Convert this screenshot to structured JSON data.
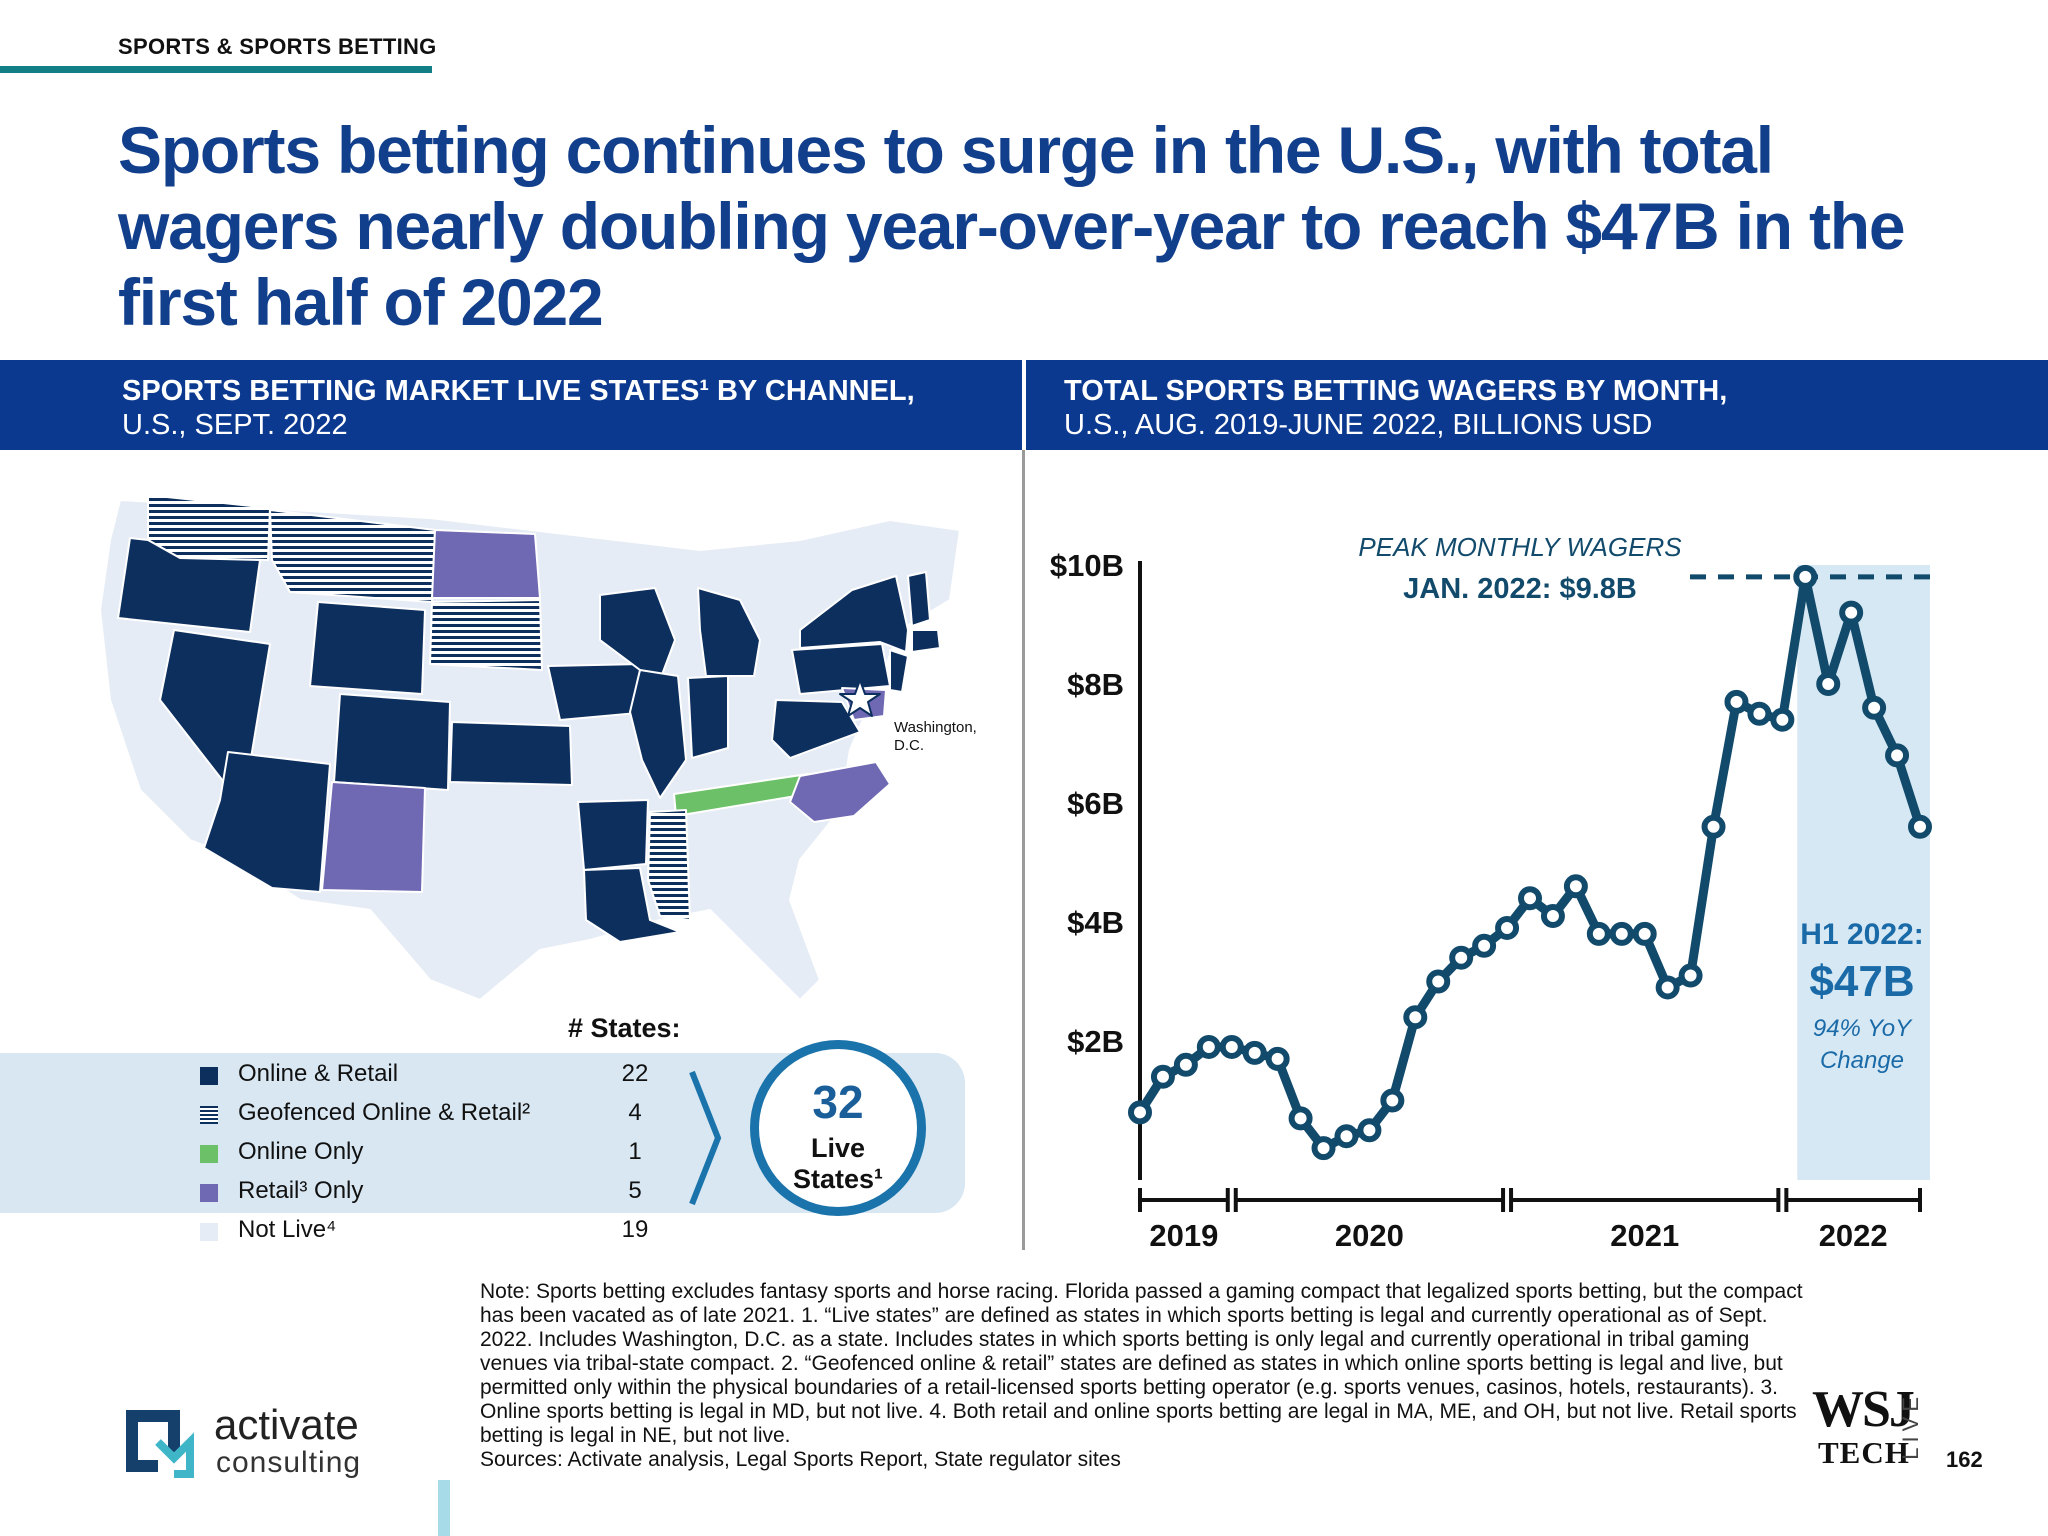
{
  "section_label": "SPORTS & SPORTS BETTING",
  "headline": "Sports betting continues to surge in the U.S., with total wagers nearly doubling year-over-year to reach $47B in the first half of 2022",
  "left_panel": {
    "title_line1": "SPORTS BETTING MARKET LIVE STATES¹ BY CHANNEL,",
    "title_line2": "U.S., SEPT. 2022",
    "map_annotation_line1": "Washington,",
    "map_annotation_line2": "D.C.",
    "states_header": "# States:",
    "legend": [
      {
        "label": "Online & Retail",
        "count": "22",
        "color": "#0d2f5e",
        "pattern": "solid"
      },
      {
        "label": "Geofenced Online & Retail²",
        "count": "4",
        "color": "#0d2f5e",
        "pattern": "striped"
      },
      {
        "label": "Online Only",
        "count": "1",
        "color": "#6cc067",
        "pattern": "solid"
      },
      {
        "label": "Retail³ Only",
        "count": "5",
        "color": "#6f68b3",
        "pattern": "solid"
      },
      {
        "label": "Not Live⁴",
        "count": "19",
        "color": "#e6ecf5",
        "pattern": "solid"
      }
    ],
    "live_count": "32",
    "live_label_line1": "Live",
    "live_label_line2": "States¹"
  },
  "right_panel": {
    "title_line1": "TOTAL SPORTS BETTING WAGERS BY MONTH,",
    "title_line2": "U.S., AUG. 2019-JUNE 2022, BILLIONS USD",
    "peak_label_line1": "PEAK MONTHLY WAGERS",
    "peak_label_line2": "JAN. 2022: $9.8B",
    "h1_title": "H1 2022:",
    "h1_value": "$47B",
    "h1_change_line1": "94% YoY",
    "h1_change_line2": "Change"
  },
  "chart_data": {
    "type": "line",
    "title": "TOTAL SPORTS BETTING WAGERS BY MONTH, U.S., AUG. 2019-JUNE 2022, BILLIONS USD",
    "xlabel": "",
    "ylabel": "",
    "ylim": [
      0,
      10
    ],
    "y_ticks": [
      "$2B",
      "$4B",
      "$6B",
      "$8B",
      "$10B"
    ],
    "y_tick_values": [
      2,
      4,
      6,
      8,
      10
    ],
    "year_groups": [
      {
        "label": "2019",
        "from": 0,
        "to": 4
      },
      {
        "label": "2020",
        "from": 4,
        "to": 16
      },
      {
        "label": "2021",
        "from": 16,
        "to": 28
      },
      {
        "label": "2022",
        "from": 28,
        "to": 34
      }
    ],
    "x": [
      "2019-08",
      "2019-09",
      "2019-10",
      "2019-11",
      "2019-12",
      "2020-01",
      "2020-02",
      "2020-03",
      "2020-04",
      "2020-05",
      "2020-06",
      "2020-07",
      "2020-08",
      "2020-09",
      "2020-10",
      "2020-11",
      "2020-12",
      "2021-01",
      "2021-02",
      "2021-03",
      "2021-04",
      "2021-05",
      "2021-06",
      "2021-07",
      "2021-08",
      "2021-09",
      "2021-10",
      "2021-11",
      "2021-12",
      "2022-01",
      "2022-02",
      "2022-03",
      "2022-04",
      "2022-05",
      "2022-06"
    ],
    "series": [
      {
        "values": [
          0.8,
          1.4,
          1.6,
          1.9,
          1.9,
          1.8,
          1.7,
          0.7,
          0.2,
          0.4,
          0.5,
          1.0,
          2.4,
          3.0,
          3.4,
          3.6,
          3.9,
          4.4,
          4.1,
          4.6,
          3.8,
          3.8,
          3.8,
          2.9,
          3.1,
          5.6,
          7.7,
          7.5,
          7.4,
          9.8,
          8.0,
          9.2,
          7.6,
          6.8,
          5.6
        ]
      }
    ],
    "peak": {
      "x": "2022-01",
      "value": 9.8
    },
    "highlight": {
      "from": "2022-01",
      "to": "2022-06",
      "label": "H1 2022"
    },
    "line_color": "#124a6b",
    "highlight_color": "#d6e8f3"
  },
  "notes": {
    "text": "Note: Sports betting excludes fantasy sports and horse racing. Florida passed a gaming compact that legalized sports betting, but the compact has been vacated as of late 2021. 1. “Live states” are defined as states in which sports betting is legal and currently operational as of Sept. 2022. Includes Washington, D.C. as a state. Includes states in which sports betting is only legal and currently operational in tribal gaming venues via tribal-state compact. 2. “Geofenced online & retail” states are defined as states in which online sports betting is legal and live, but permitted only within the physical boundaries of a retail-licensed sports betting operator (e.g. sports venues, casinos, hotels, restaurants). 3. Online sports betting is legal in MD, but not live. 4. Both retail and online sports betting are legal in MA, ME, and OH, but not live. Retail sports betting is legal in NE, but not live.",
    "sources": "Sources: Activate analysis, Legal Sports Report, State regulator sites"
  },
  "footer": {
    "logo_word1": "activate",
    "logo_word2": "consulting",
    "wsj_line1": "WSJ",
    "wsj_line2": "TECH",
    "wsj_live": "LIVE",
    "page_number": "162"
  },
  "colors": {
    "brand_blue": "#0b3990",
    "headline_blue": "#123f8c",
    "teal": "#127f87",
    "online_retail": "#0d2f5e",
    "online_only": "#6cc067",
    "retail_only": "#6f68b3",
    "not_live": "#e6ecf5"
  }
}
